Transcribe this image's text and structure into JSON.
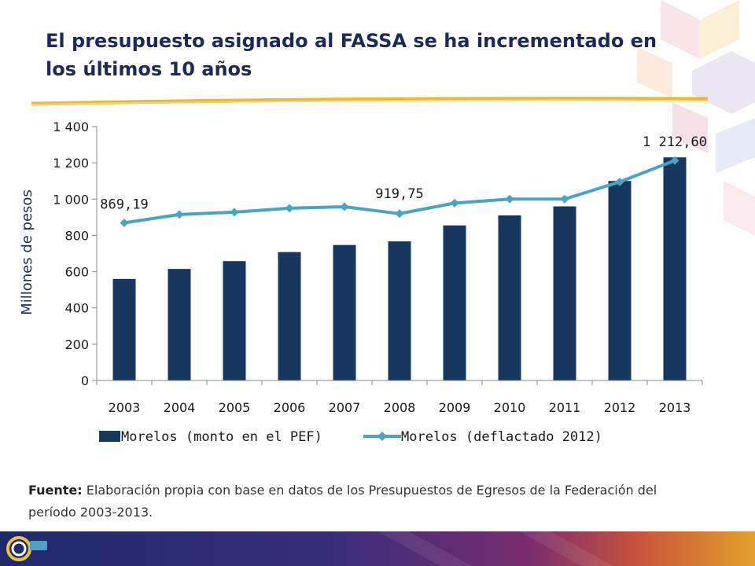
{
  "title": "El presupuesto asignado al FASSA se ha incrementado en los últimos 10 años",
  "colors": {
    "bars": "#17375e",
    "line": "#4aa3c2",
    "title": "#1c2a5a",
    "rule": "#e8b83a"
  },
  "source": {
    "label": "Fuente:",
    "text": " Elaboración propia con base en datos de los Presupuestos de Egresos de la Federación del período 2003-2013."
  },
  "chart_data": {
    "type": "bar",
    "categories": [
      "2003",
      "2004",
      "2005",
      "2006",
      "2007",
      "2008",
      "2009",
      "2010",
      "2011",
      "2012",
      "2013"
    ],
    "series": [
      {
        "name": "Morelos (monto en el PEF)",
        "type": "bar",
        "values": [
          560,
          615,
          658,
          708,
          747,
          767,
          855,
          910,
          960,
          1100,
          1230
        ]
      },
      {
        "name": "Morelos (deflactado 2012)",
        "type": "line",
        "values": [
          869.19,
          915,
          928,
          950,
          958,
          919.75,
          978,
          1000,
          1000,
          1095,
          1212.6
        ]
      }
    ],
    "data_labels": [
      {
        "series": 1,
        "index": 0,
        "text": "869,19"
      },
      {
        "series": 1,
        "index": 5,
        "text": "919,75"
      },
      {
        "series": 1,
        "index": 10,
        "text": "1 212,60"
      }
    ],
    "ylabel": "Millones de pesos",
    "xlabel": "",
    "ylim": [
      0,
      1400
    ],
    "yticks": [
      0,
      200,
      400,
      600,
      800,
      1000,
      1200,
      1400
    ],
    "ytick_labels": [
      "0",
      "200",
      "400",
      "600",
      "800",
      "1 000",
      "1 200",
      "1 400"
    ],
    "grid": false,
    "legend": "bottom"
  }
}
